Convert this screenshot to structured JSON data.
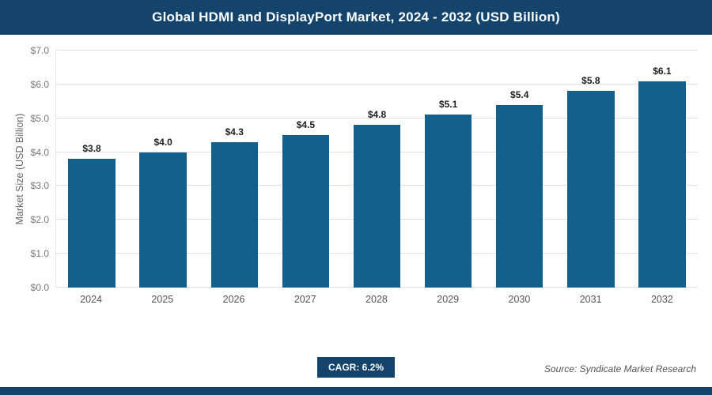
{
  "header": {
    "title": "Global HDMI and DisplayPort Market, 2024 - 2032 (USD Billion)"
  },
  "colors": {
    "header_bg": "#14436b",
    "bar": "#13608c",
    "grid": "#e0e0e0",
    "badge_bg": "#14436b"
  },
  "chart_data": {
    "type": "bar",
    "title": "Global HDMI and DisplayPort Market, 2024 - 2032 (USD Billion)",
    "categories": [
      "2024",
      "2025",
      "2026",
      "2027",
      "2028",
      "2029",
      "2030",
      "2031",
      "2032"
    ],
    "values": [
      3.8,
      4.0,
      4.3,
      4.5,
      4.8,
      5.1,
      5.4,
      5.8,
      6.1
    ],
    "value_labels": [
      "$3.8",
      "$4.0",
      "$4.3",
      "$4.5",
      "$4.8",
      "$5.1",
      "$5.4",
      "$5.8",
      "$6.1"
    ],
    "xlabel": "",
    "ylabel": "Market Size (USD Billion)",
    "ylim": [
      0,
      7
    ],
    "yticks": [
      {
        "v": 0,
        "label": "$0.0"
      },
      {
        "v": 1,
        "label": "$1.0"
      },
      {
        "v": 2,
        "label": "$2.0"
      },
      {
        "v": 3,
        "label": "$3.0"
      },
      {
        "v": 4,
        "label": "$4.0"
      },
      {
        "v": 5,
        "label": "$5.0"
      },
      {
        "v": 6,
        "label": "$6.0"
      },
      {
        "v": 7,
        "label": "$7.0"
      }
    ],
    "grid": "horizontal",
    "legend": "none"
  },
  "footer": {
    "cagr": "CAGR: 6.2%",
    "source": "Source: Syndicate Market Research"
  }
}
